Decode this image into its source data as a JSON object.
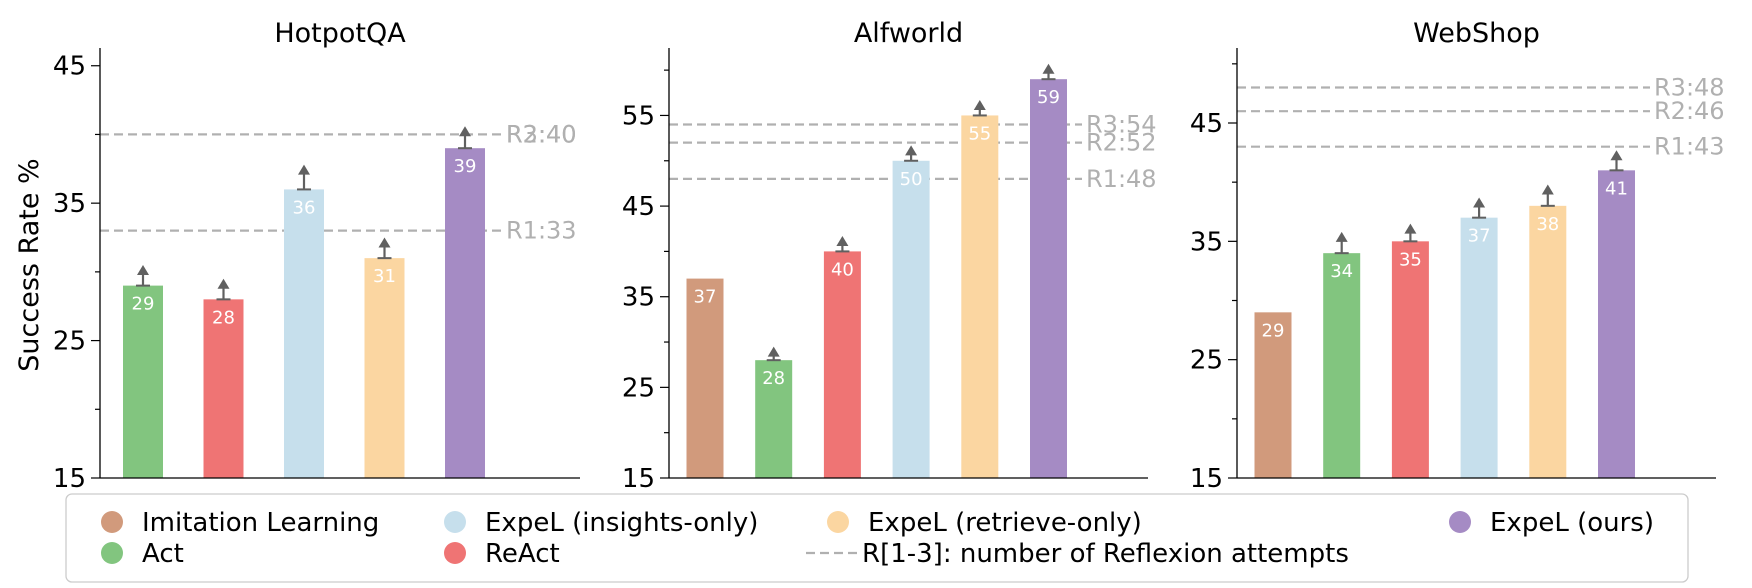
{
  "chart_data": [
    {
      "type": "bar",
      "title": "HotpotQA",
      "ylabel": "Success Rate %",
      "ylim": [
        15,
        46
      ],
      "yticks": [
        15,
        25,
        35,
        45
      ],
      "categories": [
        "Act",
        "ReAct",
        "ExpeL (insights-only)",
        "ExpeL (retrieve-only)",
        "ExpeL (ours)"
      ],
      "values": [
        29,
        28,
        36,
        31,
        39
      ],
      "labels": [
        "29",
        "28",
        "36",
        "31",
        "39"
      ],
      "arrow_tops": [
        30.5,
        29.5,
        37.8,
        32.5,
        40.6
      ],
      "colors": [
        "#82c57f",
        "#ef7474",
        "#c6dfec",
        "#fbd6a1",
        "#a58bc4"
      ],
      "reference_lines": [
        {
          "label": "R3:40",
          "value": 40
        },
        {
          "label": "R2:40",
          "value": 40
        },
        {
          "label": "R1:33",
          "value": 33
        }
      ]
    },
    {
      "type": "bar",
      "title": "Alfworld",
      "ylabel": "",
      "ylim": [
        15,
        62
      ],
      "yticks": [
        15,
        25,
        35,
        45,
        55
      ],
      "categories": [
        "Imitation Learning",
        "Act",
        "ReAct",
        "ExpeL (insights-only)",
        "ExpeL (retrieve-only)",
        "ExpeL (ours)"
      ],
      "values": [
        37,
        28,
        40,
        50,
        55,
        59
      ],
      "labels": [
        "37",
        "28",
        "40",
        "50",
        "55",
        "59"
      ],
      "arrow_tops": [
        null,
        29.5,
        41.7,
        51.7,
        56.7,
        60.7
      ],
      "colors": [
        "#d19a7c",
        "#82c57f",
        "#ef7474",
        "#c6dfec",
        "#fbd6a1",
        "#a58bc4"
      ],
      "reference_lines": [
        {
          "label": "R3:54",
          "value": 54
        },
        {
          "label": "R2:52",
          "value": 52
        },
        {
          "label": "R1:48",
          "value": 48
        }
      ]
    },
    {
      "type": "bar",
      "title": "WebShop",
      "ylabel": "",
      "ylim": [
        15,
        51
      ],
      "yticks": [
        15,
        25,
        35,
        45
      ],
      "categories": [
        "Imitation Learning",
        "Act",
        "ReAct",
        "ExpeL (insights-only)",
        "ExpeL (retrieve-only)",
        "ExpeL (ours)"
      ],
      "values": [
        29,
        34,
        35,
        37,
        38,
        41
      ],
      "labels": [
        "29",
        "34",
        "35",
        "37",
        "38",
        "41"
      ],
      "arrow_tops": [
        null,
        35.8,
        36.5,
        38.7,
        39.8,
        42.7
      ],
      "colors": [
        "#d19a7c",
        "#82c57f",
        "#ef7474",
        "#c6dfec",
        "#fbd6a1",
        "#a58bc4"
      ],
      "reference_lines": [
        {
          "label": "R3:48",
          "value": 48
        },
        {
          "label": "R2:46",
          "value": 46
        },
        {
          "label": "R1:43",
          "value": 43
        }
      ]
    }
  ],
  "legend": {
    "placement": "bottom",
    "entries": [
      {
        "label": "Imitation Learning",
        "color": "#d19a7c",
        "marker": "circle"
      },
      {
        "label": "ExpeL (insights-only)",
        "color": "#c6dfec",
        "marker": "circle"
      },
      {
        "label": "ExpeL (retrieve-only)",
        "color": "#fbd6a1",
        "marker": "circle"
      },
      {
        "label": "ExpeL (ours)",
        "color": "#a58bc4",
        "marker": "circle"
      },
      {
        "label": "Act",
        "color": "#82c57f",
        "marker": "circle"
      },
      {
        "label": "ReAct",
        "color": "#ef7474",
        "marker": "circle"
      },
      {
        "label": "R[1-3]: number of Reflexion attempts",
        "color": "#b0b0b0",
        "marker": "dashed-line"
      }
    ]
  }
}
